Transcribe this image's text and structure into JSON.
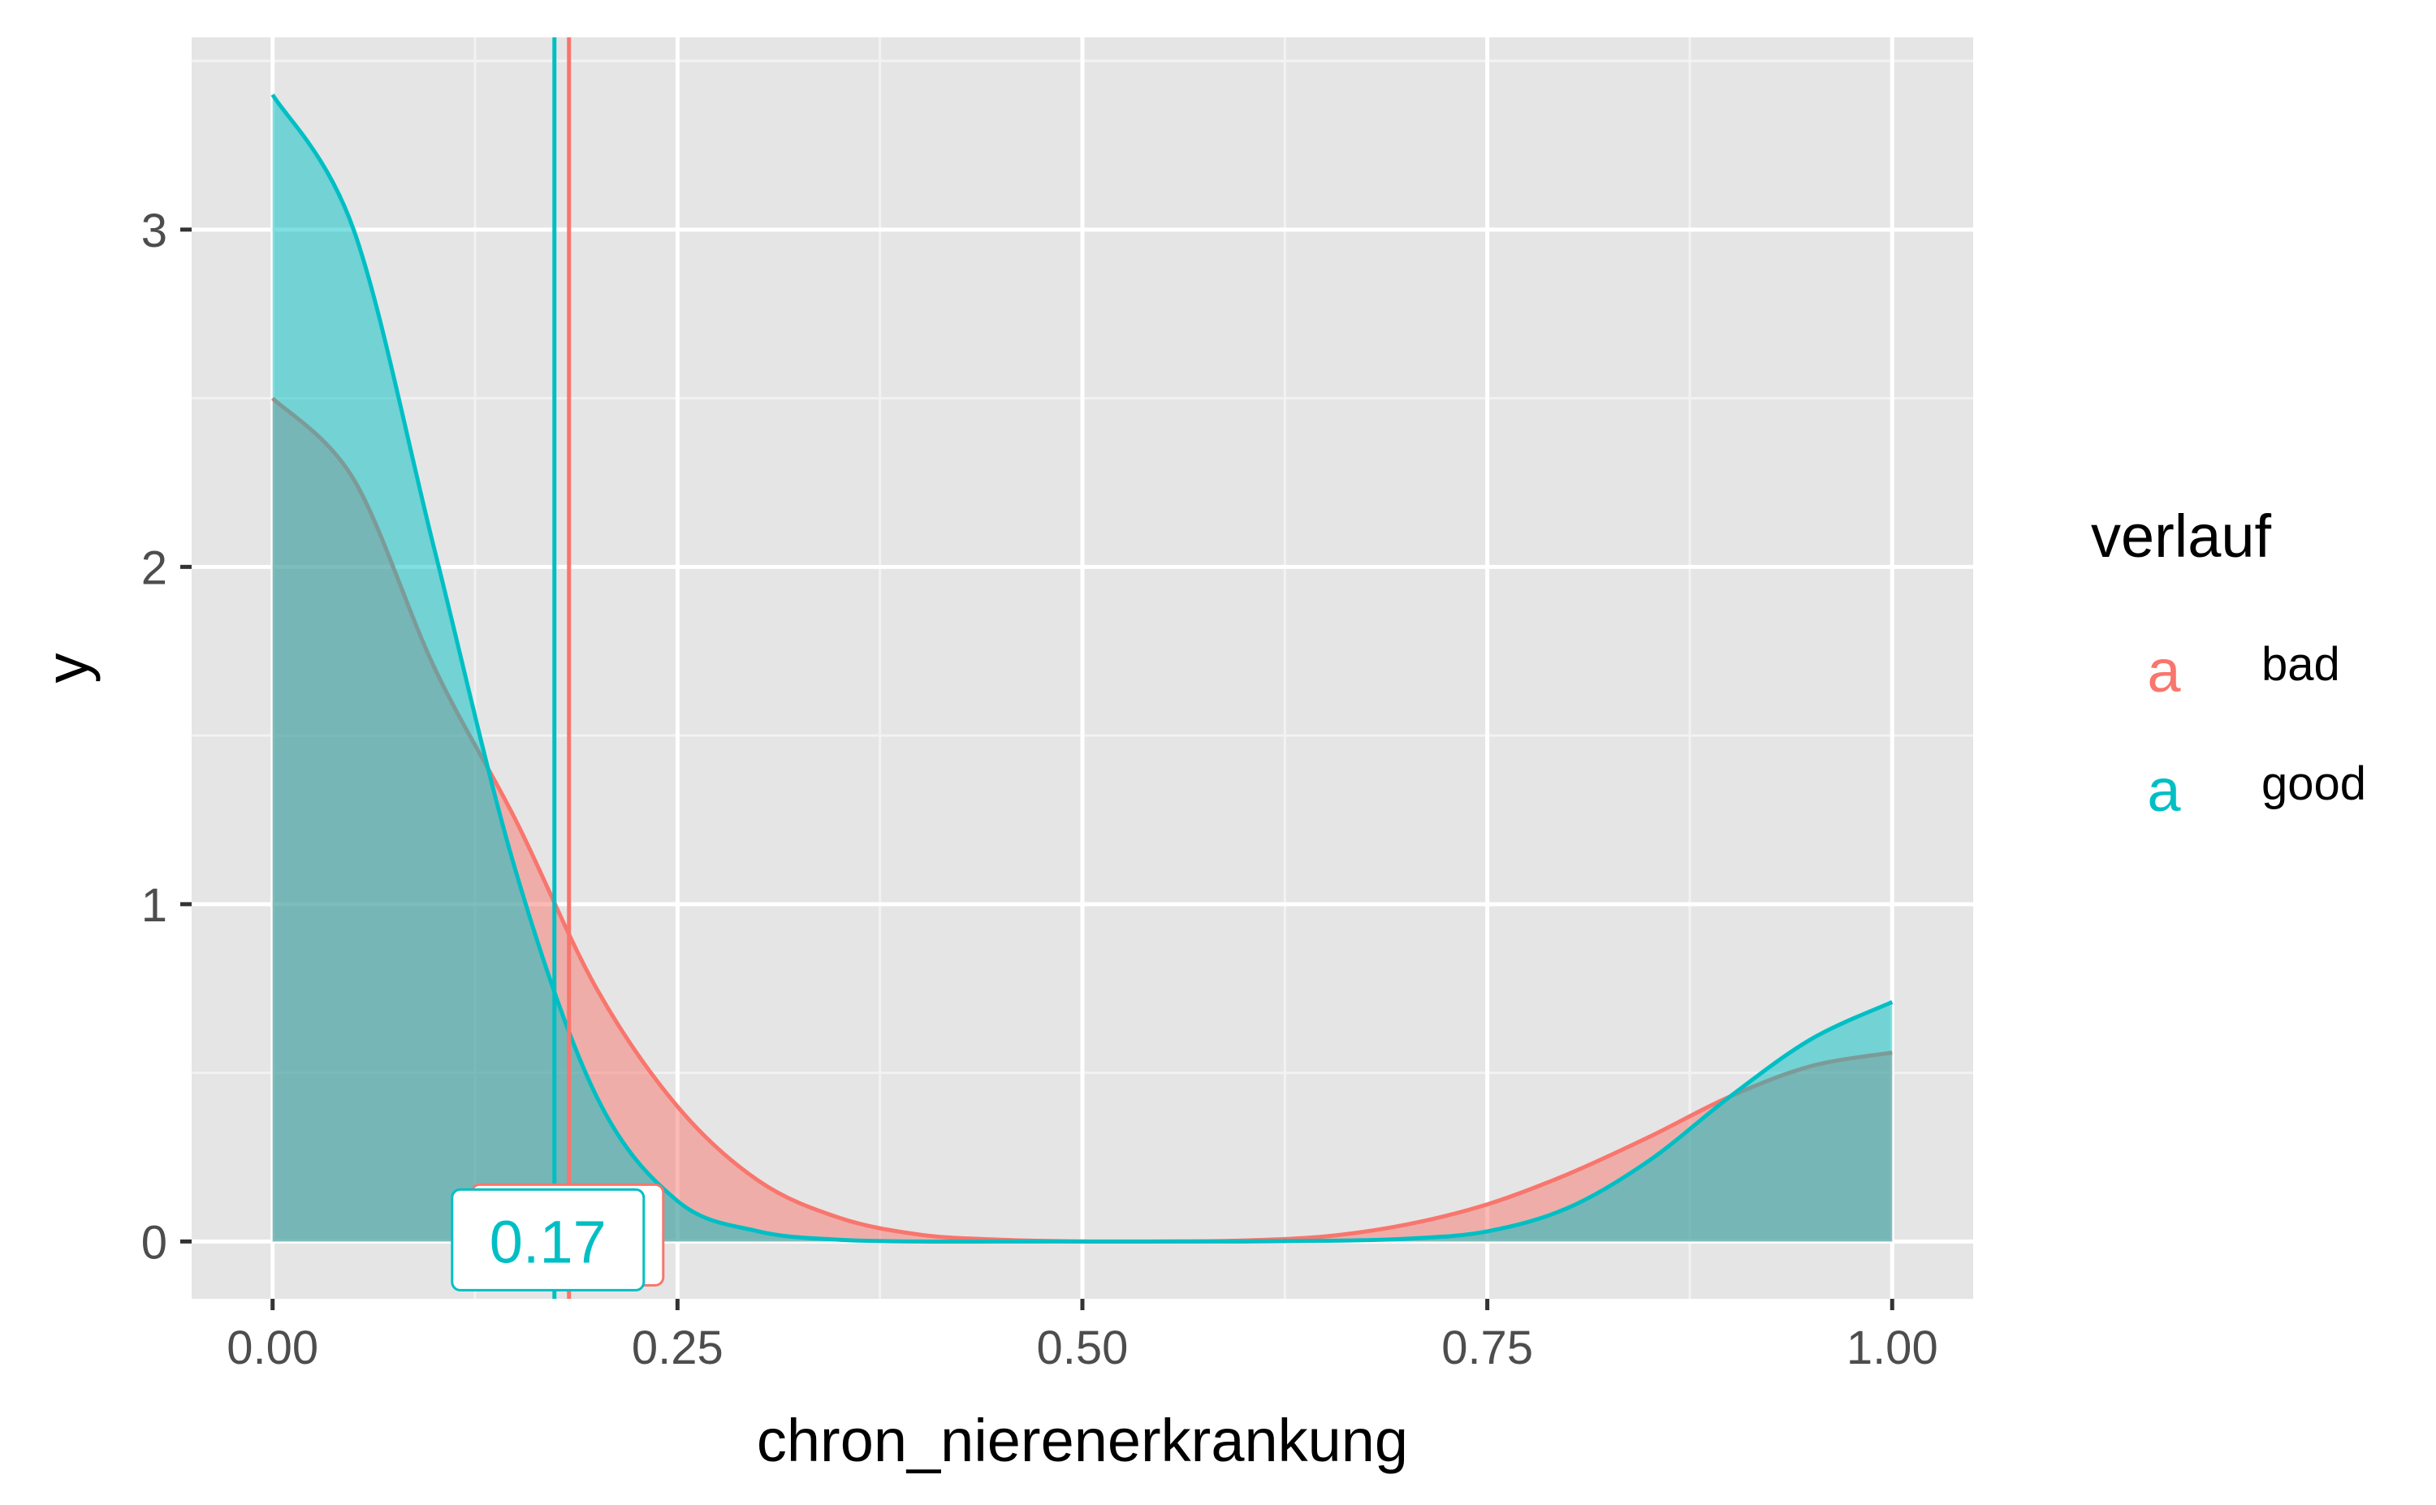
{
  "chart_data": {
    "type": "area",
    "title": "",
    "xlabel": "chron_nierenerkrankung",
    "ylabel": "y",
    "xlim": [
      -0.1,
      2.1
    ],
    "ylim": [
      -0.17,
      3.57
    ],
    "x_ticks": [
      0,
      0.25,
      0.5,
      0.75,
      1
    ],
    "x_tick_labels": [
      "0.00",
      "0.25",
      "0.50",
      "0.75",
      "1.00"
    ],
    "y_ticks": [
      0,
      1,
      2,
      3
    ],
    "y_tick_labels": [
      "0",
      "1",
      "2",
      "3"
    ],
    "grid": true,
    "legend": {
      "title": "verlauf",
      "placement": "right",
      "key_glyph": "a"
    },
    "series": [
      {
        "name": "bad",
        "color": "#F8766D",
        "mean": 0.183,
        "x": [
          0,
          0.05,
          0.1,
          0.15,
          0.2,
          0.25,
          0.3,
          0.35,
          0.4,
          0.45,
          0.5,
          0.55,
          0.6,
          0.65,
          0.7,
          0.75,
          0.8,
          0.85,
          0.9,
          0.95,
          1.0
        ],
        "values": [
          2.5,
          2.26,
          1.7,
          1.25,
          0.75,
          0.4,
          0.18,
          0.07,
          0.02,
          0.005,
          0.0,
          0.0,
          0.003,
          0.015,
          0.05,
          0.11,
          0.2,
          0.31,
          0.43,
          0.52,
          0.56
        ]
      },
      {
        "name": "good",
        "color": "#00BFC4",
        "mean": 0.174,
        "x": [
          0,
          0.05,
          0.1,
          0.15,
          0.2,
          0.25,
          0.3,
          0.35,
          0.4,
          0.45,
          0.5,
          0.55,
          0.6,
          0.65,
          0.7,
          0.75,
          0.8,
          0.85,
          0.9,
          0.95,
          1.0
        ],
        "values": [
          3.4,
          3.0,
          2.05,
          1.1,
          0.43,
          0.12,
          0.03,
          0.005,
          0.0,
          0.0,
          0.0,
          0.0,
          0.0,
          0.002,
          0.008,
          0.03,
          0.1,
          0.24,
          0.43,
          0.6,
          0.71
        ]
      }
    ],
    "annotations": [
      {
        "text": "0.17",
        "x": 0.17,
        "y": 0,
        "series": "good"
      }
    ]
  }
}
